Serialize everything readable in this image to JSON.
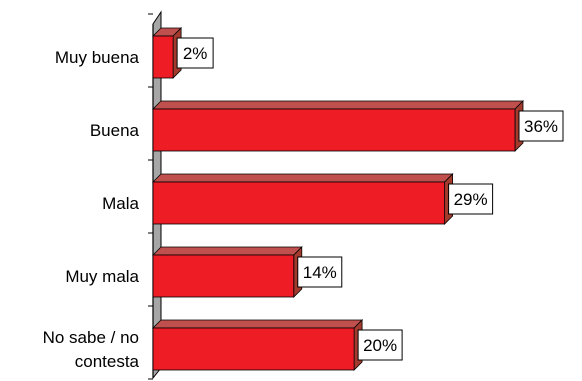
{
  "chart_data": {
    "type": "bar",
    "orientation": "horizontal",
    "style": "3d",
    "categories": [
      [
        "Muy buena"
      ],
      [
        "Buena"
      ],
      [
        "Mala"
      ],
      [
        "Muy mala"
      ],
      [
        "No sabe / no",
        "contesta"
      ]
    ],
    "values": [
      2,
      36,
      29,
      14,
      20
    ],
    "value_labels": [
      "2%",
      "36%",
      "29%",
      "14%",
      "20%"
    ],
    "xlim": [
      0,
      40
    ],
    "grid": false,
    "legend": "none",
    "colors": {
      "bar_front": "#ee1c24",
      "bar_top": "#c0504d",
      "bar_side": "#a33a2e",
      "axis_wall": "#a6a6a6",
      "axis_line": "#000000",
      "label_box_fill": "#ffffff",
      "label_box_border": "#000000"
    }
  }
}
